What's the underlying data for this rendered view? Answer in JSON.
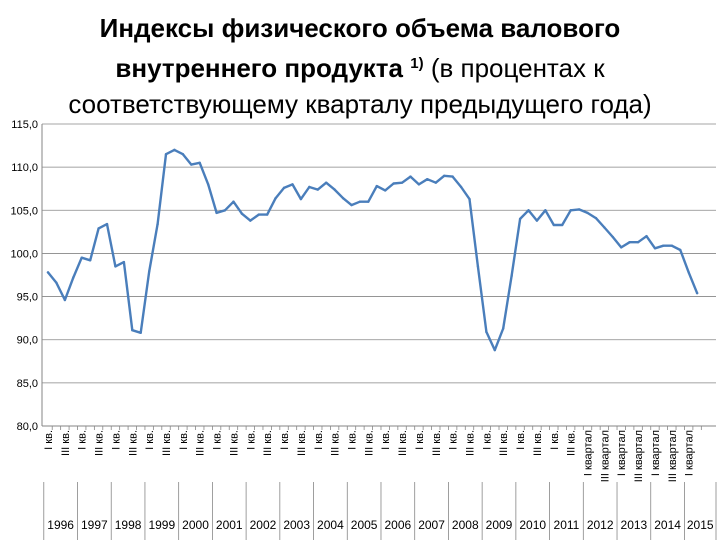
{
  "title": {
    "line1": "Индексы физического объема валового",
    "line2_bold": "внутреннего продукта",
    "line2_sup": "1)",
    "line2_rest": " (в процентах к",
    "line3": "соответствующему кварталу предыдущего года)"
  },
  "colors": {
    "line": "#4a7ebb",
    "axis": "#868686",
    "grid": "#868686",
    "text": "#000000"
  },
  "chart_data": {
    "type": "line",
    "title": "",
    "xlabel": "",
    "ylabel": "",
    "ylim": [
      80,
      115
    ],
    "y_ticks": [
      "80,0",
      "85,0",
      "90,0",
      "95,0",
      "100,0",
      "105,0",
      "110,0",
      "115,0"
    ],
    "grid": "horizontal",
    "legend": "none",
    "years": [
      "1996",
      "1997",
      "1998",
      "1999",
      "2000",
      "2001",
      "2002",
      "2003",
      "2004",
      "2005",
      "2006",
      "2007",
      "2008",
      "2009",
      "2010",
      "2011",
      "2012",
      "2013",
      "2014",
      "2015"
    ],
    "x_labels": [
      "I кв.",
      "",
      "III кв.",
      "",
      "I кв.",
      "",
      "III кв.",
      "",
      "I кв.",
      "",
      "III кв.",
      "",
      "I кв.",
      "",
      "III кв.",
      "",
      "I кв.",
      "",
      "III кв.",
      "",
      "I кв.",
      "",
      "III кв.",
      "",
      "I кв.",
      "",
      "III кв.",
      "",
      "I кв.",
      "",
      "III кв.",
      "",
      "I кв.",
      "",
      "III кв.",
      "",
      "I кв.",
      "",
      "III кв.",
      "",
      "I кв.",
      "",
      "III кв.",
      "",
      "I кв.",
      "",
      "III кв.",
      "",
      "I кв.",
      "",
      "III кв.",
      "",
      "I кв.",
      "",
      "III кв.",
      "",
      "I кв.",
      "",
      "III кв.",
      "",
      "I кв.",
      "",
      "III кв.",
      "",
      "I квартал",
      "",
      "III квартал",
      "",
      "I квартал",
      "",
      "III квартал",
      "",
      "I квартал",
      "",
      "III квартал",
      "",
      "I квартал",
      ""
    ],
    "series": [
      {
        "values": [
          97.8,
          96.6,
          94.6,
          97.2,
          99.5,
          99.2,
          102.9,
          103.4,
          98.5,
          99.0,
          91.1,
          90.8,
          97.9,
          103.4,
          111.5,
          112.0,
          111.5,
          110.3,
          110.5,
          108.0,
          104.7,
          105.0,
          106.0,
          104.6,
          103.8,
          104.5,
          104.5,
          106.4,
          107.6,
          108.0,
          106.3,
          107.7,
          107.4,
          108.2,
          107.4,
          106.4,
          105.6,
          106.0,
          106.0,
          107.8,
          107.3,
          108.1,
          108.2,
          108.9,
          108.0,
          108.6,
          108.2,
          109.0,
          108.9,
          107.7,
          106.3,
          98.5,
          90.9,
          88.8,
          91.3,
          97.4,
          104.0,
          105.0,
          103.8,
          105.0,
          103.3,
          103.3,
          105.0,
          105.1,
          104.7,
          104.1,
          103.0,
          101.9,
          100.7,
          101.3,
          101.3,
          102.0,
          100.6,
          100.9,
          100.9,
          100.4,
          97.8,
          95.4
        ]
      }
    ]
  }
}
